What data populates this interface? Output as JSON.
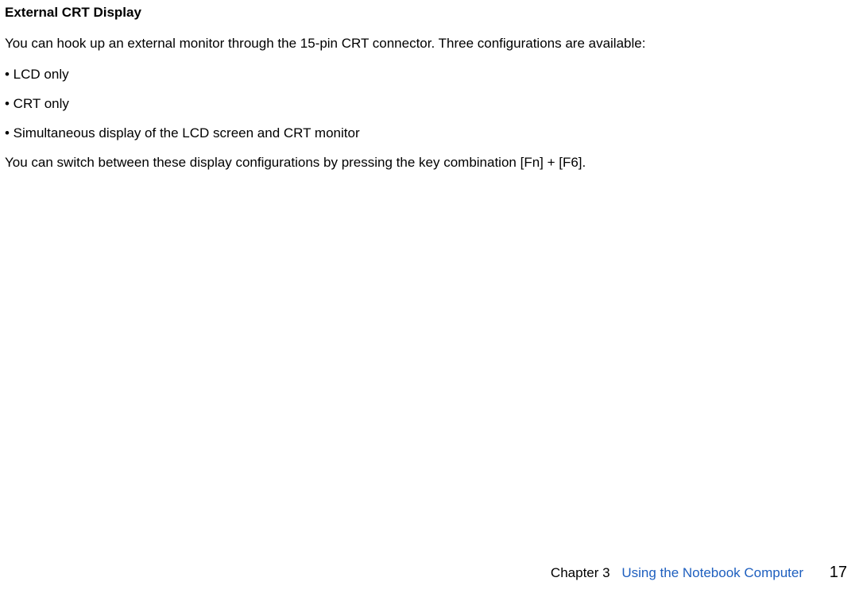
{
  "colors": {
    "text": "#000000",
    "link": "#1e5fbf",
    "background": "#ffffff"
  },
  "typography": {
    "heading_font": "Arial",
    "body_font": "Segoe UI",
    "heading_size_pt": 13,
    "body_size_pt": 13,
    "heading_weight": 700,
    "body_weight": 400
  },
  "heading": "External CRT Display",
  "intro": "You can hook up an external monitor through the 15-pin CRT connector. Three configurations are available:",
  "bullets": [
    "• LCD only",
    "• CRT only",
    "• Simultaneous display of the LCD screen and CRT monitor"
  ],
  "outro": "You can switch between these display configurations by pressing the key combination [Fn] + [F6].",
  "footer": {
    "chapter_label": "Chapter 3",
    "chapter_title": "Using the Notebook Computer",
    "page_number": "17"
  }
}
